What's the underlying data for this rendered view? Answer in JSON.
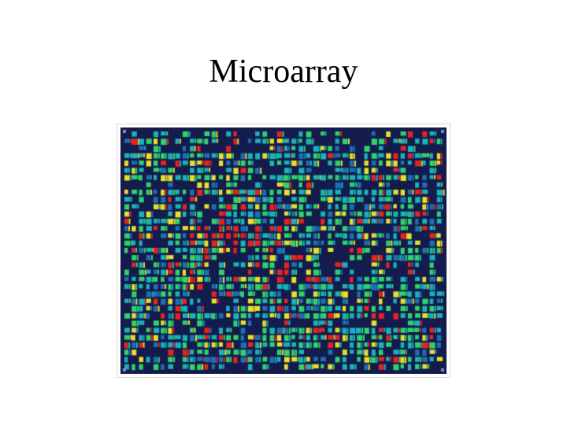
{
  "slide": {
    "title": "Microarray"
  },
  "image": {
    "subject": "microarray-spot-grid",
    "colors": {
      "background": "#141b4d",
      "low": "#1e6fb0",
      "mid_low": "#19b3b8",
      "mid": "#2fd36a",
      "mid_high": "#e6e02a",
      "high": "#e8231f"
    }
  }
}
